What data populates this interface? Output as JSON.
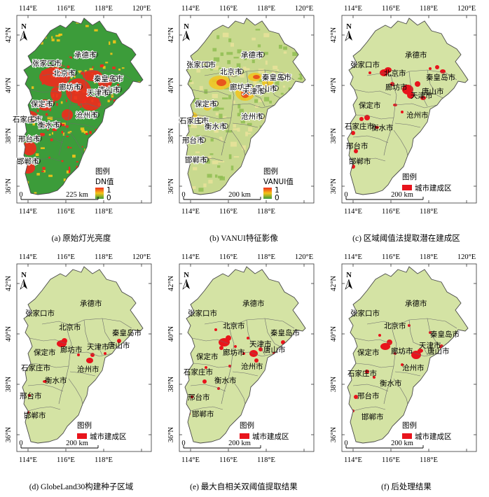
{
  "lon_ticks": [
    "114°E",
    "116°E",
    "118°E",
    "120°E"
  ],
  "lon_ticks_bottom": [
    "114°E",
    "116°E",
    "118°E"
  ],
  "lat_ticks": [
    "42°N",
    "40°N",
    "38°N",
    "36°N"
  ],
  "north_label": "N",
  "cities": [
    "张家口市",
    "承德市",
    "北京市",
    "秦皇岛市",
    "廊坊市",
    "唐山市",
    "天津市",
    "保定市",
    "沧州市",
    "石家庄市",
    "衡水市",
    "邢台市",
    "邯郸市"
  ],
  "colors": {
    "land": "#d4e3a4",
    "urban": "#e8141c",
    "dn_high": "#ee2c1d",
    "dn_mid": "#f5c518",
    "dn_low": "#3c9c3a",
    "boundary": "#6b6b6b"
  },
  "panels": [
    {
      "caption": "(a) 原始灯光亮度",
      "legend_title": "图例",
      "legend_sub": "DN值",
      "legend_max": "1",
      "legend_min": "0",
      "scale_label": "225 km",
      "style": "dn"
    },
    {
      "caption": "(b) VANUI特征影像",
      "legend_title": "图例",
      "legend_sub": "VANUI值",
      "legend_max": "1",
      "legend_min": "0",
      "scale_label": "200 km",
      "style": "vanui"
    },
    {
      "caption": "(c) 区域阈值法提取潜在建成区",
      "legend_title": "图例",
      "legend_item": "城市建成区",
      "scale_label": "200 km",
      "style": "urban"
    },
    {
      "caption": "(d) GlobeLand30构建种子区域",
      "legend_title": "图例",
      "legend_item": "城市建成区",
      "scale_label": "200 km",
      "style": "urban"
    },
    {
      "caption": "(e) 最大自相关双阈值提取结果",
      "legend_title": "图例",
      "legend_item": "城市建成区",
      "scale_label": "200 km",
      "style": "urban"
    },
    {
      "caption": "(f) 后处理结果",
      "legend_title": "图例",
      "legend_item": "城市建成区",
      "scale_label": "200 km",
      "style": "urban"
    }
  ]
}
